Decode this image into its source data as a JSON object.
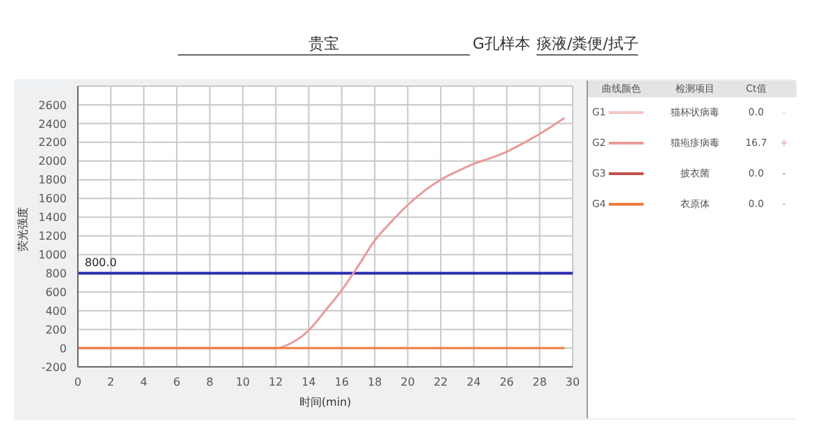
{
  "chart_data": {
    "type": "line",
    "xlabel": "时间(min)",
    "ylabel": "荧光强度",
    "x": [
      0,
      2,
      4,
      6,
      8,
      10,
      12,
      13,
      14,
      15,
      16,
      17,
      18,
      19,
      20,
      21,
      22,
      23,
      24,
      25,
      26,
      27,
      28,
      29,
      29.5
    ],
    "series": [
      {
        "name": "G1",
        "color": "#f4c4c4",
        "values": [
          null,
          null,
          null,
          null,
          null,
          null,
          null,
          null,
          null,
          null,
          null,
          null,
          null,
          null,
          null,
          null,
          null,
          null,
          null,
          null,
          null,
          null,
          null,
          null,
          null
        ]
      },
      {
        "name": "G2",
        "color": "#e89a9a",
        "values": [
          0,
          0,
          0,
          0,
          0,
          0,
          0,
          60,
          190,
          400,
          620,
          880,
          1150,
          1350,
          1530,
          1680,
          1800,
          1890,
          1970,
          2030,
          2100,
          2190,
          2290,
          2400,
          2460
        ]
      },
      {
        "name": "G3",
        "color": "#c0504d",
        "values": [
          null,
          null,
          null,
          null,
          null,
          null,
          null,
          null,
          null,
          null,
          null,
          null,
          null,
          null,
          null,
          null,
          null,
          null,
          null,
          null,
          null,
          null,
          null,
          null,
          null
        ]
      },
      {
        "name": "G4",
        "color": "#f07a3c",
        "values": [
          0,
          0,
          0,
          0,
          0,
          0,
          0,
          0,
          0,
          0,
          0,
          0,
          0,
          0,
          0,
          0,
          0,
          0,
          0,
          0,
          0,
          0,
          0,
          0,
          0
        ]
      }
    ],
    "xlim": [
      0,
      30
    ],
    "xticks": [
      0,
      2,
      4,
      6,
      8,
      10,
      12,
      14,
      16,
      18,
      20,
      22,
      24,
      26,
      28,
      30
    ],
    "ylim": [
      -200,
      2800
    ],
    "yticks": [
      -200,
      0,
      200,
      400,
      600,
      800,
      1000,
      1200,
      1400,
      1600,
      1800,
      2000,
      2200,
      2400,
      2600
    ],
    "ref_lines": [
      {
        "axis": "y",
        "value": 800,
        "label": "800.0",
        "color": "#2b2bb0"
      }
    ],
    "grid": true,
    "legend": "right",
    "marker": "none",
    "line_style": "solid",
    "annotations": [
      "贵宝",
      "G孔样本",
      "痰液/粪便/拭子",
      "曲线颜色",
      "检测项目",
      "Ct值",
      "猫杯状病毒",
      "0.0",
      "-",
      "猫疱疹病毒",
      "16.7",
      "+",
      "披衣菌",
      "0.0",
      "-",
      "衣原体",
      "0.0",
      "-"
    ]
  }
}
